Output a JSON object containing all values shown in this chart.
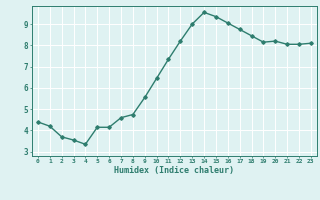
{
  "x": [
    0,
    1,
    2,
    3,
    4,
    5,
    6,
    7,
    8,
    9,
    10,
    11,
    12,
    13,
    14,
    15,
    16,
    17,
    18,
    19,
    20,
    21,
    22,
    23
  ],
  "y": [
    4.4,
    4.2,
    3.7,
    3.55,
    3.35,
    4.15,
    4.15,
    4.6,
    4.75,
    5.55,
    6.45,
    7.35,
    8.2,
    9.0,
    9.55,
    9.35,
    9.05,
    8.75,
    8.45,
    8.15,
    8.2,
    8.05,
    8.05,
    8.1
  ],
  "xlim": [
    -0.5,
    23.5
  ],
  "ylim": [
    2.8,
    9.85
  ],
  "yticks": [
    3,
    4,
    5,
    6,
    7,
    8,
    9
  ],
  "xticks": [
    0,
    1,
    2,
    3,
    4,
    5,
    6,
    7,
    8,
    9,
    10,
    11,
    12,
    13,
    14,
    15,
    16,
    17,
    18,
    19,
    20,
    21,
    22,
    23
  ],
  "xlabel": "Humidex (Indice chaleur)",
  "line_color": "#2e7d6e",
  "marker": "D",
  "marker_size": 1.8,
  "bg_color": "#dff2f2",
  "grid_color": "#ffffff",
  "axis_color": "#2e7d6e",
  "tick_color": "#2e7d6e",
  "label_color": "#2e7d6e",
  "line_width": 1.0
}
